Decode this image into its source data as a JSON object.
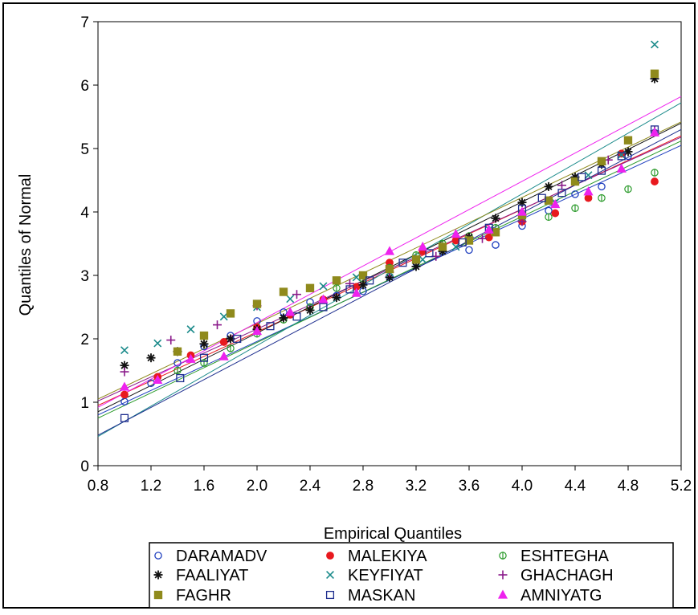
{
  "chart_data": {
    "type": "scatter",
    "title": "",
    "xlabel": "Empirical Quantiles",
    "ylabel": "Quantiles of Normal",
    "xlim": [
      0.8,
      5.2
    ],
    "ylim": [
      0,
      7
    ],
    "xticks": [
      "0.8",
      "1.2",
      "1.6",
      "2.0",
      "2.4",
      "2.8",
      "3.2",
      "3.6",
      "4.0",
      "4.4",
      "4.8",
      "5.2"
    ],
    "yticks": [
      "0",
      "1",
      "2",
      "3",
      "4",
      "5",
      "6",
      "7"
    ],
    "grid": false,
    "legend_position": "bottom",
    "series": [
      {
        "name": "DARAMADV",
        "marker": "circle",
        "color": "#1f3fbf",
        "points": [
          [
            1.0,
            1.01
          ],
          [
            1.2,
            1.3
          ],
          [
            1.4,
            1.62
          ],
          [
            1.6,
            1.88
          ],
          [
            1.8,
            2.05
          ],
          [
            2.0,
            2.28
          ],
          [
            2.2,
            2.42
          ],
          [
            2.4,
            2.58
          ],
          [
            2.6,
            2.68
          ],
          [
            2.8,
            2.75
          ],
          [
            3.0,
            2.98
          ],
          [
            3.2,
            3.2
          ],
          [
            3.4,
            3.38
          ],
          [
            3.6,
            3.4
          ],
          [
            3.8,
            3.48
          ],
          [
            4.0,
            3.78
          ],
          [
            4.2,
            4.02
          ],
          [
            4.4,
            4.28
          ],
          [
            4.6,
            4.4
          ],
          [
            4.8,
            4.88
          ],
          [
            5.0,
            5.25
          ]
        ],
        "fit": [
          [
            0.8,
            0.8
          ],
          [
            5.2,
            5.05
          ]
        ]
      },
      {
        "name": "MALEKIYA",
        "marker": "dot",
        "color": "#e8191e",
        "points": [
          [
            1.0,
            1.12
          ],
          [
            1.25,
            1.4
          ],
          [
            1.5,
            1.74
          ],
          [
            1.75,
            1.95
          ],
          [
            2.0,
            2.18
          ],
          [
            2.25,
            2.38
          ],
          [
            2.5,
            2.62
          ],
          [
            2.75,
            2.82
          ],
          [
            3.0,
            3.2
          ],
          [
            3.25,
            3.38
          ],
          [
            3.5,
            3.55
          ],
          [
            3.75,
            3.6
          ],
          [
            4.0,
            3.85
          ],
          [
            4.25,
            3.98
          ],
          [
            4.5,
            4.22
          ],
          [
            4.75,
            4.92
          ],
          [
            5.0,
            4.48
          ]
        ],
        "fit": [
          [
            0.8,
            0.95
          ],
          [
            5.2,
            5.2
          ]
        ]
      },
      {
        "name": "ESHTEGHA",
        "marker": "circle-bar",
        "color": "#2a9a2a",
        "points": [
          [
            1.4,
            1.5
          ],
          [
            1.6,
            1.62
          ],
          [
            1.8,
            1.85
          ],
          [
            2.0,
            2.08
          ],
          [
            2.2,
            2.3
          ],
          [
            2.4,
            2.5
          ],
          [
            2.6,
            2.8
          ],
          [
            2.8,
            2.95
          ],
          [
            3.0,
            3.12
          ],
          [
            3.2,
            3.32
          ],
          [
            3.4,
            3.5
          ],
          [
            3.6,
            3.62
          ],
          [
            3.8,
            3.75
          ],
          [
            4.0,
            3.98
          ],
          [
            4.2,
            3.92
          ],
          [
            4.4,
            4.06
          ],
          [
            4.6,
            4.22
          ],
          [
            4.8,
            4.36
          ],
          [
            5.0,
            4.62
          ]
        ],
        "fit": [
          [
            0.8,
            0.75
          ],
          [
            5.2,
            5.12
          ]
        ]
      },
      {
        "name": "FAALIYAT",
        "marker": "asterisk",
        "color": "#111111",
        "points": [
          [
            1.0,
            1.58
          ],
          [
            1.2,
            1.7
          ],
          [
            1.4,
            1.8
          ],
          [
            1.6,
            1.92
          ],
          [
            1.8,
            2.0
          ],
          [
            2.0,
            2.15
          ],
          [
            2.2,
            2.33
          ],
          [
            2.4,
            2.45
          ],
          [
            2.6,
            2.65
          ],
          [
            2.8,
            2.85
          ],
          [
            3.0,
            2.97
          ],
          [
            3.2,
            3.14
          ],
          [
            3.4,
            3.38
          ],
          [
            3.6,
            3.6
          ],
          [
            3.8,
            3.9
          ],
          [
            4.0,
            4.15
          ],
          [
            4.2,
            4.4
          ],
          [
            4.4,
            4.55
          ],
          [
            4.6,
            4.75
          ],
          [
            4.8,
            4.95
          ],
          [
            5.0,
            6.1
          ]
        ],
        "fit": [
          [
            0.8,
            0.85
          ],
          [
            5.2,
            5.4
          ]
        ]
      },
      {
        "name": "KEYFIYAT",
        "marker": "x",
        "color": "#1a8a8a",
        "points": [
          [
            1.0,
            1.82
          ],
          [
            1.25,
            1.93
          ],
          [
            1.5,
            2.15
          ],
          [
            1.75,
            2.35
          ],
          [
            2.0,
            2.5
          ],
          [
            2.25,
            2.63
          ],
          [
            2.5,
            2.83
          ],
          [
            2.75,
            2.97
          ],
          [
            3.0,
            3.05
          ],
          [
            3.25,
            3.25
          ],
          [
            3.5,
            3.45
          ],
          [
            3.75,
            3.72
          ],
          [
            4.0,
            3.92
          ],
          [
            4.25,
            4.15
          ],
          [
            4.5,
            4.58
          ],
          [
            4.75,
            4.9
          ],
          [
            5.0,
            6.64
          ]
        ],
        "fit": [
          [
            0.8,
            0.46
          ],
          [
            5.2,
            5.72
          ]
        ]
      },
      {
        "name": "GHACHAGH",
        "marker": "plus",
        "color": "#8a1a8a",
        "points": [
          [
            1.0,
            1.48
          ],
          [
            1.35,
            1.98
          ],
          [
            1.7,
            2.22
          ],
          [
            2.0,
            2.52
          ],
          [
            2.3,
            2.7
          ],
          [
            2.7,
            2.87
          ],
          [
            3.0,
            3.05
          ],
          [
            3.35,
            3.3
          ],
          [
            3.7,
            3.58
          ],
          [
            4.0,
            3.85
          ],
          [
            4.3,
            4.42
          ],
          [
            4.65,
            4.82
          ],
          [
            5.0,
            5.28
          ]
        ],
        "fit": [
          [
            0.8,
            1.02
          ],
          [
            5.2,
            5.18
          ]
        ]
      },
      {
        "name": "FAGHR",
        "marker": "square-filled",
        "color": "#8f8a1c",
        "points": [
          [
            1.4,
            1.8
          ],
          [
            1.6,
            2.05
          ],
          [
            1.8,
            2.4
          ],
          [
            2.0,
            2.55
          ],
          [
            2.2,
            2.74
          ],
          [
            2.4,
            2.8
          ],
          [
            2.6,
            2.92
          ],
          [
            2.8,
            3.0
          ],
          [
            3.0,
            3.1
          ],
          [
            3.2,
            3.25
          ],
          [
            3.4,
            3.45
          ],
          [
            3.6,
            3.55
          ],
          [
            3.8,
            3.68
          ],
          [
            4.0,
            3.95
          ],
          [
            4.2,
            4.18
          ],
          [
            4.4,
            4.48
          ],
          [
            4.6,
            4.8
          ],
          [
            4.8,
            5.13
          ],
          [
            5.0,
            6.18
          ]
        ],
        "fit": [
          [
            0.8,
            1.05
          ],
          [
            5.2,
            5.42
          ]
        ]
      },
      {
        "name": "MASKAN",
        "marker": "square",
        "color": "#1f2f8f",
        "points": [
          [
            1.0,
            0.75
          ],
          [
            1.42,
            1.38
          ],
          [
            1.6,
            1.7
          ],
          [
            1.85,
            2.0
          ],
          [
            2.1,
            2.2
          ],
          [
            2.3,
            2.35
          ],
          [
            2.5,
            2.5
          ],
          [
            2.7,
            2.78
          ],
          [
            2.85,
            2.92
          ],
          [
            3.1,
            3.2
          ],
          [
            3.3,
            3.35
          ],
          [
            3.55,
            3.52
          ],
          [
            3.75,
            3.75
          ],
          [
            4.0,
            4.05
          ],
          [
            4.15,
            4.22
          ],
          [
            4.3,
            4.3
          ],
          [
            4.45,
            4.55
          ],
          [
            4.6,
            4.65
          ],
          [
            4.75,
            4.88
          ],
          [
            5.0,
            5.3
          ]
        ],
        "fit": [
          [
            0.8,
            0.48
          ],
          [
            5.2,
            5.3
          ]
        ]
      },
      {
        "name": "AMNIYATG",
        "marker": "triangle",
        "color": "#ee22ee",
        "points": [
          [
            1.0,
            1.24
          ],
          [
            1.25,
            1.35
          ],
          [
            1.5,
            1.68
          ],
          [
            1.75,
            1.72
          ],
          [
            2.0,
            2.12
          ],
          [
            2.25,
            2.42
          ],
          [
            2.5,
            2.62
          ],
          [
            2.75,
            2.72
          ],
          [
            3.0,
            3.38
          ],
          [
            3.25,
            3.45
          ],
          [
            3.5,
            3.65
          ],
          [
            3.75,
            3.72
          ],
          [
            4.0,
            4.0
          ],
          [
            4.25,
            4.12
          ],
          [
            4.5,
            4.32
          ],
          [
            4.75,
            4.68
          ],
          [
            5.0,
            5.25
          ]
        ],
        "fit": [
          [
            0.8,
            0.92
          ],
          [
            5.2,
            5.82
          ]
        ]
      }
    ]
  }
}
